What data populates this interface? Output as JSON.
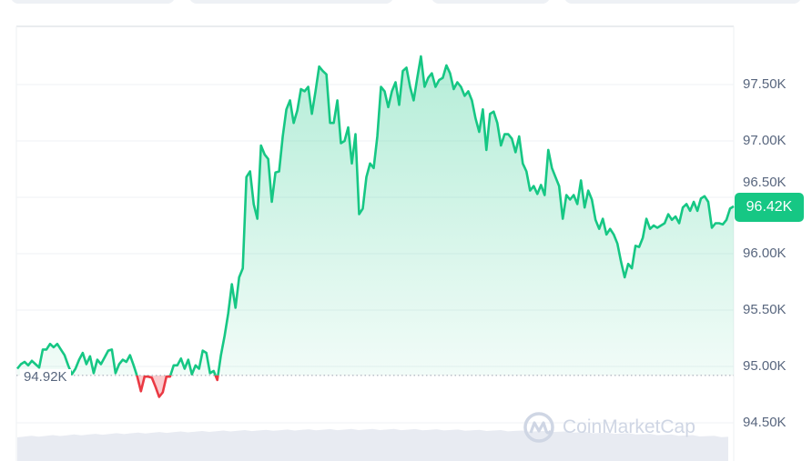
{
  "chart_data": {
    "type": "area",
    "y_ticks": [
      "97.50K",
      "97.00K",
      "96.50K",
      "96.00K",
      "95.50K",
      "95.00K",
      "94.50K"
    ],
    "ylim": [
      94.3,
      97.96
    ],
    "grid": true,
    "baseline": 94.92,
    "baseline_label": "94.92K",
    "current_price_label": "96.42K",
    "values": [
      94.98,
      95.02,
      95.04,
      95.01,
      95.05,
      95.02,
      94.99,
      95.15,
      95.15,
      95.2,
      95.17,
      95.2,
      95.15,
      95.1,
      95.01,
      94.93,
      94.98,
      95.06,
      95.12,
      95.02,
      95.09,
      94.94,
      95.06,
      95.02,
      95.08,
      95.14,
      95.15,
      94.94,
      95.02,
      95.06,
      95.04,
      95.1,
      95.01,
      94.91,
      94.78,
      94.91,
      94.91,
      94.9,
      94.82,
      94.73,
      94.77,
      94.91,
      94.91,
      95.01,
      95.01,
      95.07,
      94.98,
      95.06,
      94.93,
      95.01,
      94.98,
      95.14,
      95.12,
      94.94,
      94.96,
      94.88,
      95.1,
      95.27,
      95.47,
      95.73,
      95.52,
      95.79,
      95.87,
      96.68,
      96.73,
      96.44,
      96.31,
      96.96,
      96.88,
      96.84,
      96.46,
      96.72,
      96.73,
      97.04,
      97.28,
      97.36,
      97.16,
      97.27,
      97.46,
      97.44,
      97.48,
      97.24,
      97.44,
      97.66,
      97.62,
      97.59,
      97.16,
      97.16,
      97.36,
      96.98,
      97.0,
      97.12,
      96.8,
      97.06,
      96.35,
      96.4,
      96.68,
      96.8,
      96.76,
      97.04,
      97.48,
      97.44,
      97.3,
      97.44,
      97.52,
      97.32,
      97.62,
      97.65,
      97.48,
      97.36,
      97.56,
      97.75,
      97.48,
      97.56,
      97.6,
      97.48,
      97.54,
      97.56,
      97.67,
      97.6,
      97.46,
      97.52,
      97.48,
      97.4,
      97.44,
      97.36,
      97.2,
      97.08,
      97.28,
      96.92,
      97.24,
      97.26,
      97.16,
      96.96,
      97.06,
      97.06,
      97.02,
      96.9,
      97.04,
      96.8,
      96.73,
      96.56,
      96.6,
      96.53,
      96.61,
      96.52,
      96.92,
      96.76,
      96.68,
      96.6,
      96.31,
      96.52,
      96.48,
      96.52,
      96.44,
      96.65,
      96.41,
      96.56,
      96.48,
      96.3,
      96.22,
      96.31,
      96.17,
      96.22,
      96.17,
      96.09,
      95.93,
      95.79,
      95.91,
      95.87,
      96.07,
      96.06,
      96.14,
      96.31,
      96.22,
      96.25,
      96.23,
      96.25,
      96.27,
      96.35,
      96.3,
      96.33,
      96.27,
      96.41,
      96.44,
      96.38,
      96.46,
      96.38,
      96.49,
      96.51,
      96.46,
      96.23,
      96.27,
      96.27,
      96.26,
      96.3,
      96.4,
      96.42
    ],
    "colors": {
      "up": "#16c784",
      "down": "#ea3943",
      "grid": "#eff2f5",
      "axis_text": "#58667e"
    }
  },
  "watermark": "CoinMarketCap"
}
